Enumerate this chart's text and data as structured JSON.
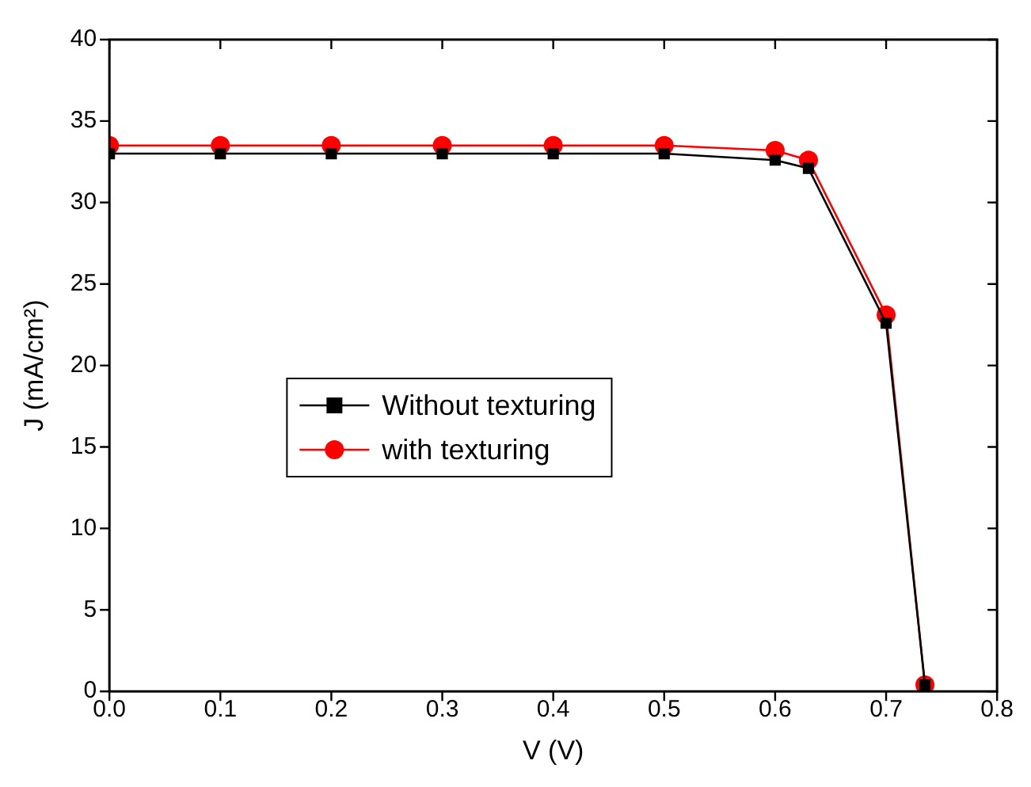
{
  "chart_data": {
    "type": "line",
    "xlabel": "V (V)",
    "ylabel": "J (mA/cm²)",
    "x": [
      0,
      0.1,
      0.2,
      0.3,
      0.4,
      0.5,
      0.6,
      0.63,
      0.7,
      0.735
    ],
    "series": [
      {
        "name": "Without texturing",
        "color": "#000000",
        "marker": "square",
        "values": [
          33.0,
          33.0,
          33.0,
          33.0,
          33.0,
          33.0,
          32.6,
          32.1,
          22.6,
          0.4
        ]
      },
      {
        "name": "with texturing",
        "color": "#ff0000",
        "marker": "circle",
        "values": [
          33.5,
          33.5,
          33.5,
          33.5,
          33.5,
          33.5,
          33.2,
          32.6,
          23.1,
          0.4
        ]
      }
    ],
    "xlim": [
      0,
      0.8
    ],
    "xticks": [
      {
        "value": 0,
        "label": "0.0"
      },
      0.1,
      0.2,
      0.3,
      0.4,
      0.5,
      0.6,
      0.7,
      0.8
    ],
    "ylim": [
      0,
      40
    ],
    "yticks": [
      0,
      5,
      10,
      15,
      20,
      25,
      30,
      35,
      40
    ],
    "grid": false,
    "legend": "center",
    "line_style": "solid"
  }
}
